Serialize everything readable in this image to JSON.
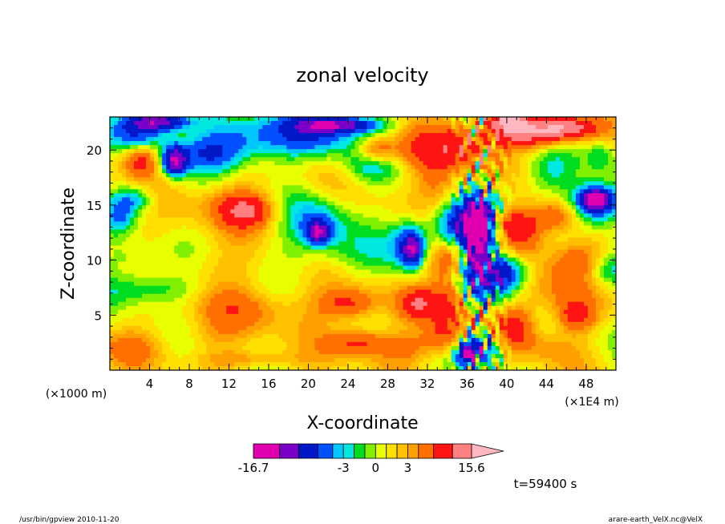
{
  "chart_data": {
    "type": "heatmap",
    "title": "zonal velocity",
    "xlabel": "X-coordinate",
    "ylabel": "Z-coordinate",
    "x_unit_left": "(×1000 m)",
    "x_unit_right": "(×1E4 m)",
    "xlim": [
      0,
      51
    ],
    "ylim": [
      0,
      23
    ],
    "x_ticks": [
      4,
      8,
      12,
      16,
      20,
      24,
      28,
      32,
      36,
      40,
      44,
      48
    ],
    "y_ticks": [
      5,
      10,
      15,
      20
    ],
    "colorbar": {
      "min": -16.7,
      "max": 15.6,
      "labels": [
        "-16.7",
        "-3",
        "0",
        "3",
        "15.6"
      ],
      "label_values": [
        -16.7,
        -3,
        0,
        3,
        15.6
      ],
      "levels": [
        -16.7,
        -12,
        -9,
        -6,
        -4,
        -3,
        -2,
        -1,
        0,
        1,
        2,
        3,
        4,
        6,
        9,
        12,
        15.6
      ],
      "colors": [
        "#e000b0",
        "#7a00c8",
        "#0018c8",
        "#0050ff",
        "#00c8ff",
        "#00e8e0",
        "#00dc20",
        "#80f000",
        "#e8ff00",
        "#ffe000",
        "#ffc000",
        "#ffa000",
        "#ff7000",
        "#ff1414",
        "#ff8080",
        "#ffb8c0"
      ]
    },
    "time_label": "t=59400 s"
  },
  "footer": {
    "left": "/usr/bin/gpview   2010-11-20",
    "right": "arare-earth_VelX.nc@VelX"
  }
}
